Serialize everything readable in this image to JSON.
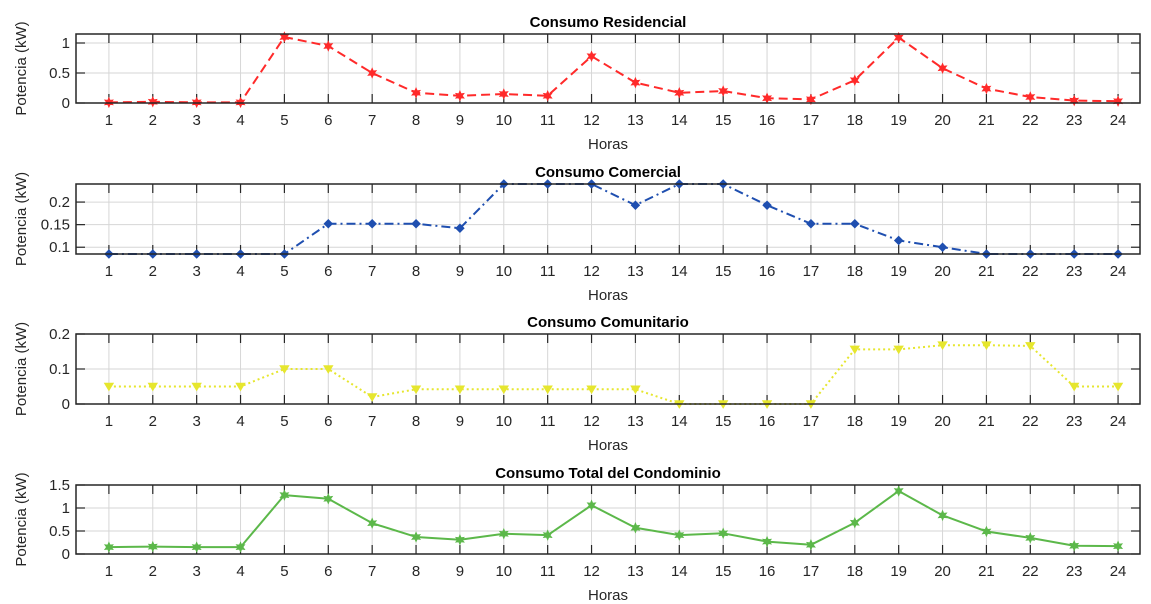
{
  "chart_data": [
    {
      "type": "line",
      "title": "Consumo Residencial",
      "xlabel": "Horas",
      "ylabel": "Potencia (kW)",
      "x": [
        1,
        2,
        3,
        4,
        5,
        6,
        7,
        8,
        9,
        10,
        11,
        12,
        13,
        14,
        15,
        16,
        17,
        18,
        19,
        20,
        21,
        22,
        23,
        24
      ],
      "xlim": [
        0.25,
        24.5
      ],
      "ylim": [
        0,
        1.15
      ],
      "yticks": [
        0,
        0.5,
        1
      ],
      "ytick_labels": [
        "0",
        "0.5",
        "1"
      ],
      "grid": true,
      "series": [
        {
          "values": [
            0.01,
            0.02,
            0.01,
            0.01,
            1.1,
            0.95,
            0.5,
            0.17,
            0.12,
            0.15,
            0.12,
            0.78,
            0.34,
            0.17,
            0.2,
            0.08,
            0.06,
            0.38,
            1.09,
            0.58,
            0.24,
            0.1,
            0.04,
            0.03
          ],
          "color": "#ff2a2a",
          "line_style": "dashed",
          "marker": "hexagram"
        }
      ]
    },
    {
      "type": "line",
      "title": "Consumo Comercial",
      "xlabel": "Horas",
      "ylabel": "Potencia (kW)",
      "x": [
        1,
        2,
        3,
        4,
        5,
        6,
        7,
        8,
        9,
        10,
        11,
        12,
        13,
        14,
        15,
        16,
        17,
        18,
        19,
        20,
        21,
        22,
        23,
        24
      ],
      "xlim": [
        0.25,
        24.5
      ],
      "ylim": [
        0.085,
        0.24
      ],
      "yticks": [
        0.1,
        0.15,
        0.2
      ],
      "ytick_labels": [
        "0.1",
        "0.15",
        "0.2"
      ],
      "grid": true,
      "series": [
        {
          "values": [
            0.085,
            0.085,
            0.085,
            0.085,
            0.085,
            0.152,
            0.152,
            0.152,
            0.142,
            0.24,
            0.24,
            0.24,
            0.193,
            0.24,
            0.24,
            0.193,
            0.152,
            0.152,
            0.115,
            0.1,
            0.085,
            0.085,
            0.085,
            0.085
          ],
          "color": "#1f4fb0",
          "line_style": "dashdot",
          "marker": "diamond"
        }
      ]
    },
    {
      "type": "line",
      "title": "Consumo Comunitario",
      "xlabel": "Horas",
      "ylabel": "Potencia (kW)",
      "x": [
        1,
        2,
        3,
        4,
        5,
        6,
        7,
        8,
        9,
        10,
        11,
        12,
        13,
        14,
        15,
        16,
        17,
        18,
        19,
        20,
        21,
        22,
        23,
        24
      ],
      "xlim": [
        0.25,
        24.5
      ],
      "ylim": [
        0,
        0.2
      ],
      "yticks": [
        0,
        0.1,
        0.2
      ],
      "ytick_labels": [
        "0",
        "0.1",
        "0.2"
      ],
      "grid": true,
      "series": [
        {
          "values": [
            0.05,
            0.05,
            0.05,
            0.05,
            0.1,
            0.1,
            0.02,
            0.042,
            0.042,
            0.042,
            0.042,
            0.042,
            0.042,
            0.0,
            0.0,
            0.0,
            0.0,
            0.156,
            0.156,
            0.168,
            0.168,
            0.166,
            0.05,
            0.05
          ],
          "color": "#e6e62e",
          "line_style": "dotted",
          "marker": "triangle-down"
        }
      ]
    },
    {
      "type": "line",
      "title": "Consumo Total del Condominio",
      "xlabel": "Horas",
      "ylabel": "Potencia (kW)",
      "x": [
        1,
        2,
        3,
        4,
        5,
        6,
        7,
        8,
        9,
        10,
        11,
        12,
        13,
        14,
        15,
        16,
        17,
        18,
        19,
        20,
        21,
        22,
        23,
        24
      ],
      "xlim": [
        0.25,
        24.5
      ],
      "ylim": [
        0,
        1.5
      ],
      "yticks": [
        0,
        0.5,
        1,
        1.5
      ],
      "ytick_labels": [
        "0",
        "0.5",
        "1",
        "1.5"
      ],
      "grid": true,
      "series": [
        {
          "values": [
            0.15,
            0.16,
            0.15,
            0.15,
            1.28,
            1.2,
            0.67,
            0.37,
            0.31,
            0.44,
            0.41,
            1.06,
            0.57,
            0.41,
            0.45,
            0.27,
            0.2,
            0.68,
            1.37,
            0.84,
            0.49,
            0.35,
            0.18,
            0.17
          ],
          "color": "#5cb84a",
          "line_style": "solid",
          "marker": "hexagram"
        }
      ]
    }
  ]
}
